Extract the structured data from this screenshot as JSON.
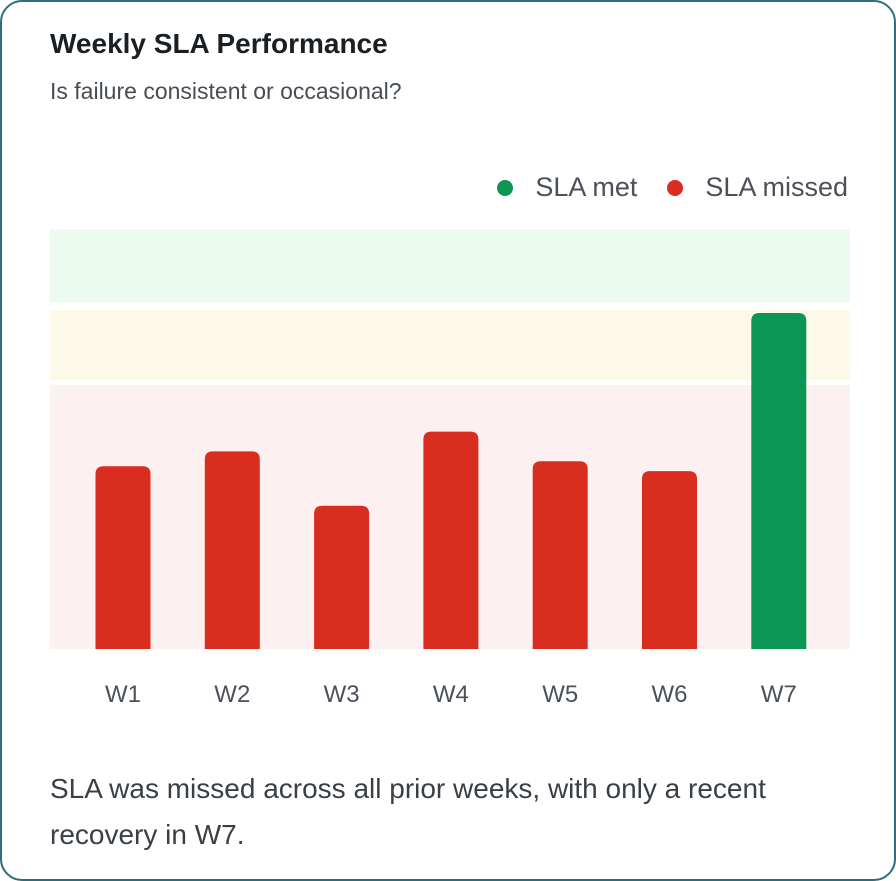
{
  "card": {
    "title": "Weekly SLA Performance",
    "subtitle": "Is failure consistent or occasional?",
    "footer": "SLA was missed across all prior weeks, with only a recent recovery in W7."
  },
  "legend": [
    {
      "label": "SLA met",
      "color": "#0b9655"
    },
    {
      "label": "SLA missed",
      "color": "#d92d20"
    }
  ],
  "chart_data": {
    "type": "bar",
    "categories": [
      "W1",
      "W2",
      "W3",
      "W4",
      "W5",
      "W6",
      "W7"
    ],
    "series": [
      {
        "values": [
          86.5,
          88,
          82.5,
          90,
          87,
          86,
          102
        ]
      }
    ],
    "status": [
      "missed",
      "missed",
      "missed",
      "missed",
      "missed",
      "missed",
      "met"
    ],
    "ylim": [
      68,
      110
    ],
    "bands": [
      {
        "from": 68,
        "to": 94.7,
        "color": "#fdf0f0"
      },
      {
        "from": 95.2,
        "to": 102.3,
        "color": "#fdf9e8"
      },
      {
        "from": 103.1,
        "to": 110.5,
        "color": "#ecfbf0"
      }
    ],
    "colors": {
      "met": "#0b9655",
      "missed": "#d92d20"
    },
    "xlabel": "",
    "ylabel": "",
    "grid": false,
    "legend_position": "top-right"
  }
}
